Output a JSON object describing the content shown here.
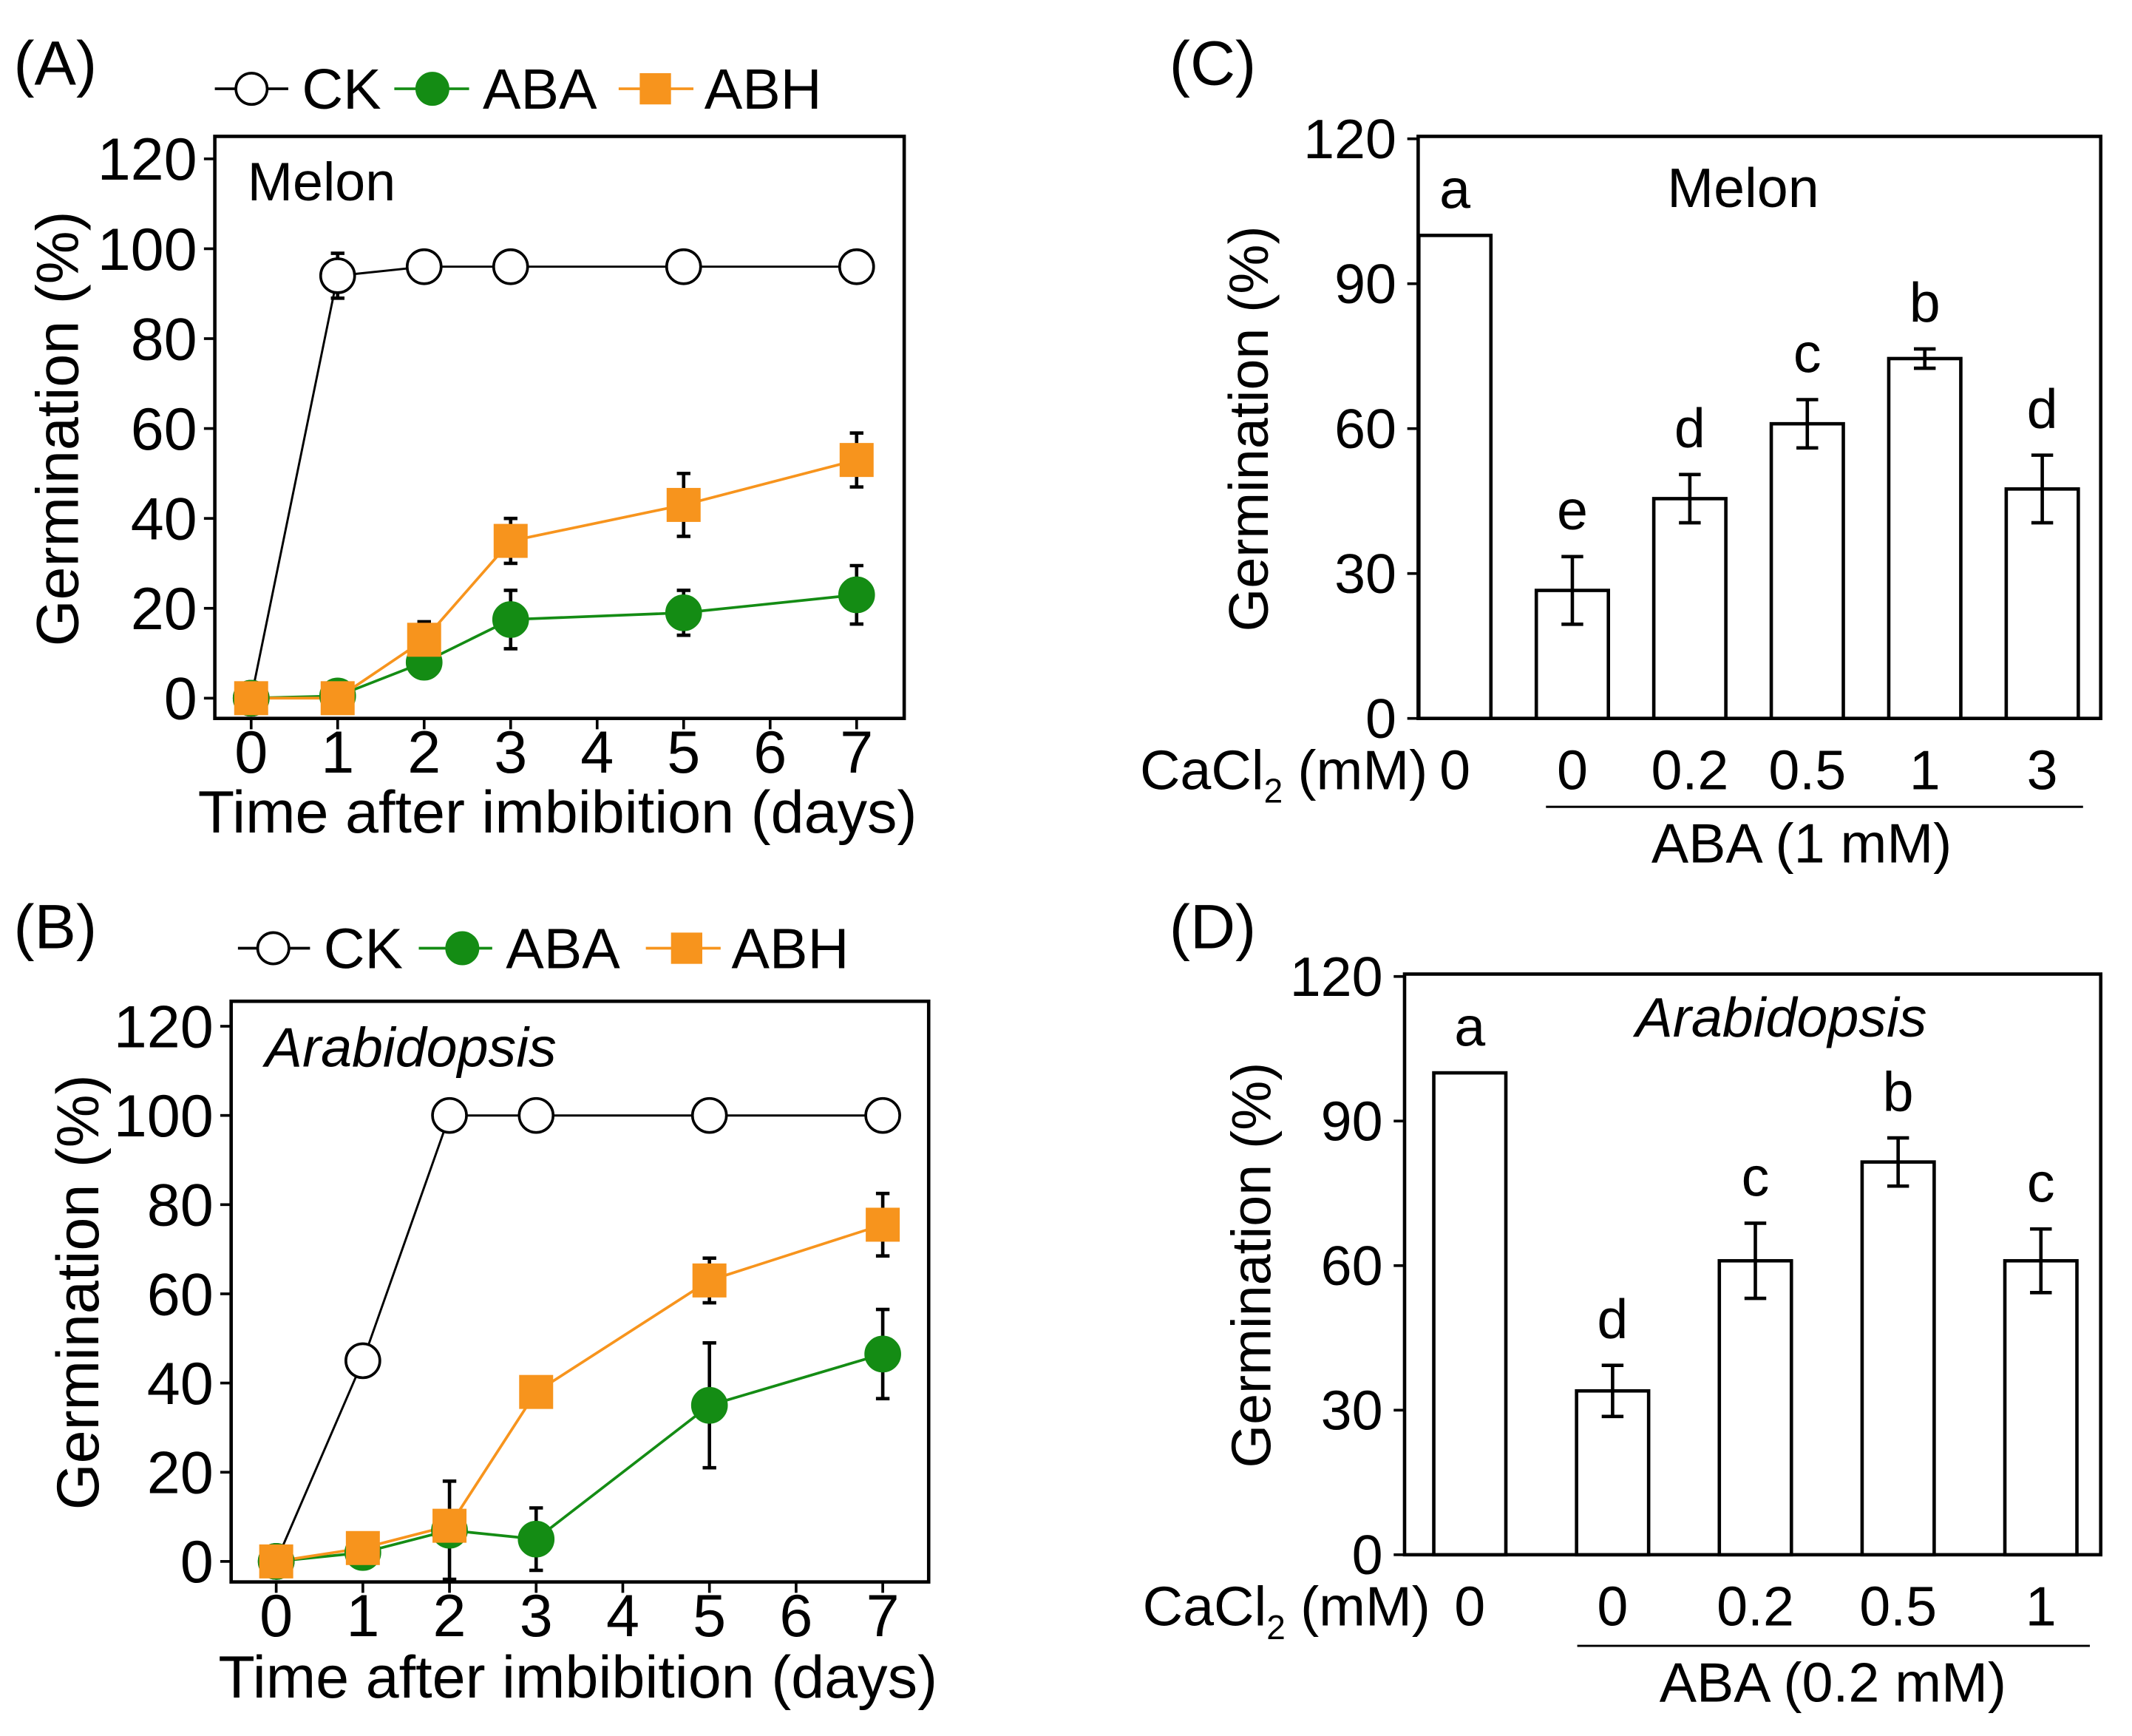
{
  "chart_data": [
    {
      "panel_label": "(A)",
      "type": "line",
      "title": "Melon",
      "title_italic": false,
      "xlabel": "Time after imbibition (days)",
      "ylabel": "Germination (%)",
      "xlim": [
        -0.42,
        7.55
      ],
      "ylim": [
        -4.5,
        125
      ],
      "xticks": [
        0,
        1,
        2,
        3,
        4,
        5,
        6,
        7
      ],
      "yticks": [
        0,
        20,
        40,
        60,
        80,
        100,
        120
      ],
      "series": [
        {
          "name": "CK",
          "marker": "open-circle",
          "color": "#000000",
          "x": [
            0,
            1,
            2,
            3,
            5,
            7
          ],
          "values": [
            0,
            94,
            96,
            96,
            96,
            96
          ],
          "errors": [
            0,
            5,
            2,
            2,
            2,
            2
          ]
        },
        {
          "name": "ABA",
          "marker": "circle",
          "color": "#148c14",
          "x": [
            0,
            1,
            2,
            3,
            5,
            7
          ],
          "values": [
            0,
            0.5,
            8,
            17.5,
            19,
            23
          ],
          "errors": [
            0,
            1,
            3,
            6.5,
            5,
            6.5
          ]
        },
        {
          "name": "ABH",
          "marker": "square",
          "color": "#f7941d",
          "x": [
            0,
            1,
            2,
            3,
            5,
            7
          ],
          "values": [
            0,
            0,
            13,
            35,
            43,
            53
          ],
          "errors": [
            0,
            0,
            4,
            5,
            7,
            6
          ]
        }
      ]
    },
    {
      "panel_label": "(B)",
      "type": "line",
      "title": "Arabidopsis",
      "title_italic": true,
      "xlabel": "Time after imbibition (days)",
      "ylabel": "Germination (%)",
      "xlim": [
        -0.52,
        7.53
      ],
      "ylim": [
        -4.6,
        125.6
      ],
      "xticks": [
        0,
        1,
        2,
        3,
        4,
        5,
        6,
        7
      ],
      "yticks": [
        0,
        20,
        40,
        60,
        80,
        100,
        120
      ],
      "series": [
        {
          "name": "CK",
          "marker": "open-circle",
          "color": "#000000",
          "x": [
            0,
            1,
            2,
            3,
            5,
            7
          ],
          "values": [
            0,
            45,
            100,
            100,
            100,
            100
          ],
          "errors": [
            0,
            2,
            0,
            0,
            0,
            0
          ]
        },
        {
          "name": "ABA",
          "marker": "circle",
          "color": "#148c14",
          "x": [
            0,
            1,
            2,
            3,
            5,
            7
          ],
          "values": [
            0,
            2,
            7,
            5,
            35,
            46.5
          ],
          "errors": [
            0,
            2,
            11,
            7,
            14,
            10
          ]
        },
        {
          "name": "ABH",
          "marker": "square",
          "color": "#f7941d",
          "x": [
            0,
            1,
            2,
            3,
            5,
            7
          ],
          "values": [
            0,
            3,
            8,
            38,
            63,
            75.5
          ],
          "errors": [
            0,
            2,
            3,
            3,
            5,
            7
          ]
        }
      ]
    },
    {
      "panel_label": "(C)",
      "type": "bar",
      "title": "Melon",
      "title_italic": false,
      "ylabel": "Germination (%)",
      "ylim": [
        0,
        120.5
      ],
      "yticks": [
        0,
        30,
        60,
        90,
        120
      ],
      "xlabel_main": "CaCl",
      "xlabel_sub": "2",
      "xlabel_unit": "(mM)",
      "categories": [
        "0",
        "0",
        "0.2",
        "0.5",
        "1",
        "3"
      ],
      "values": [
        100,
        26.5,
        45.5,
        61,
        74.5,
        47.5
      ],
      "errors": [
        0,
        7,
        5,
        5,
        2,
        7
      ],
      "letters": [
        "a",
        "e",
        "d",
        "c",
        "b",
        "d"
      ],
      "group_label": "ABA (1 mM)"
    },
    {
      "panel_label": "(D)",
      "type": "bar",
      "title": "Arabidopsis",
      "title_italic": true,
      "ylabel": "Germination (%)",
      "ylim": [
        0,
        120.5
      ],
      "yticks": [
        0,
        30,
        60,
        90,
        120
      ],
      "xlabel_main": "CaCl",
      "xlabel_sub": "2",
      "xlabel_unit": "(mM)",
      "categories": [
        "0",
        "0",
        "0.2",
        "0.5",
        "1"
      ],
      "values": [
        100,
        34,
        61,
        81.5,
        61
      ],
      "errors": [
        0,
        5.3,
        7.8,
        5,
        6.6
      ],
      "letters": [
        "a",
        "d",
        "c",
        "b",
        "c"
      ],
      "group_label": "ABA (0.2 mM)"
    }
  ]
}
